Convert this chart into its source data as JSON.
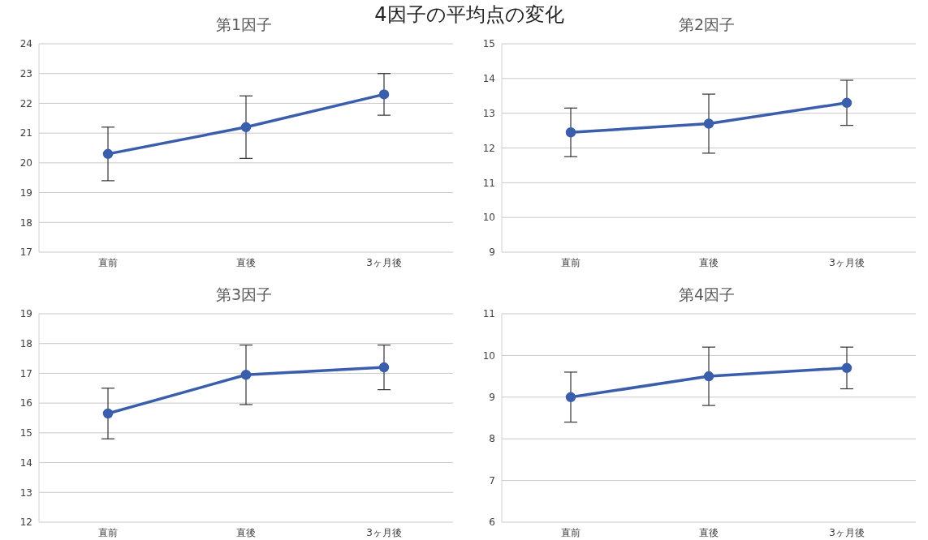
{
  "chart_data": [
    {
      "type": "line",
      "title": "第1因子",
      "annotations": [
        "4因子の平均点の変化"
      ],
      "categories": [
        "直前",
        "直後",
        "3ヶ月後"
      ],
      "values": [
        20.3,
        21.2,
        22.3
      ],
      "errors": [
        0.9,
        1.05,
        0.7
      ],
      "color": "#3a5eab",
      "ylim": [
        17,
        24
      ],
      "yticks": [
        17,
        18,
        19,
        20,
        21,
        22,
        23,
        24
      ],
      "grid": "y",
      "marker": "circle",
      "legend": false
    },
    {
      "type": "line",
      "title": "第2因子",
      "categories": [
        "直前",
        "直後",
        "3ヶ月後"
      ],
      "values": [
        12.45,
        12.7,
        13.3
      ],
      "errors": [
        0.7,
        0.85,
        0.65
      ],
      "color": "#3a5eab",
      "ylim": [
        9,
        15
      ],
      "yticks": [
        9,
        10,
        11,
        12,
        13,
        14,
        15
      ],
      "grid": "y",
      "marker": "circle",
      "legend": false
    },
    {
      "type": "line",
      "title": "第3因子",
      "categories": [
        "直前",
        "直後",
        "3ヶ月後"
      ],
      "values": [
        15.65,
        16.95,
        17.2
      ],
      "errors": [
        0.85,
        1.0,
        0.75
      ],
      "color": "#3a5eab",
      "ylim": [
        12,
        19
      ],
      "yticks": [
        12,
        13,
        14,
        15,
        16,
        17,
        18,
        19
      ],
      "grid": "y",
      "marker": "circle",
      "legend": false
    },
    {
      "type": "line",
      "title": "第4因子",
      "categories": [
        "直前",
        "直後",
        "3ヶ月後"
      ],
      "values": [
        9.0,
        9.5,
        9.7
      ],
      "errors": [
        0.6,
        0.7,
        0.5
      ],
      "color": "#3a5eab",
      "ylim": [
        6,
        11
      ],
      "yticks": [
        6,
        7,
        8,
        9,
        10,
        11
      ],
      "grid": "y",
      "marker": "circle",
      "legend": false
    }
  ]
}
